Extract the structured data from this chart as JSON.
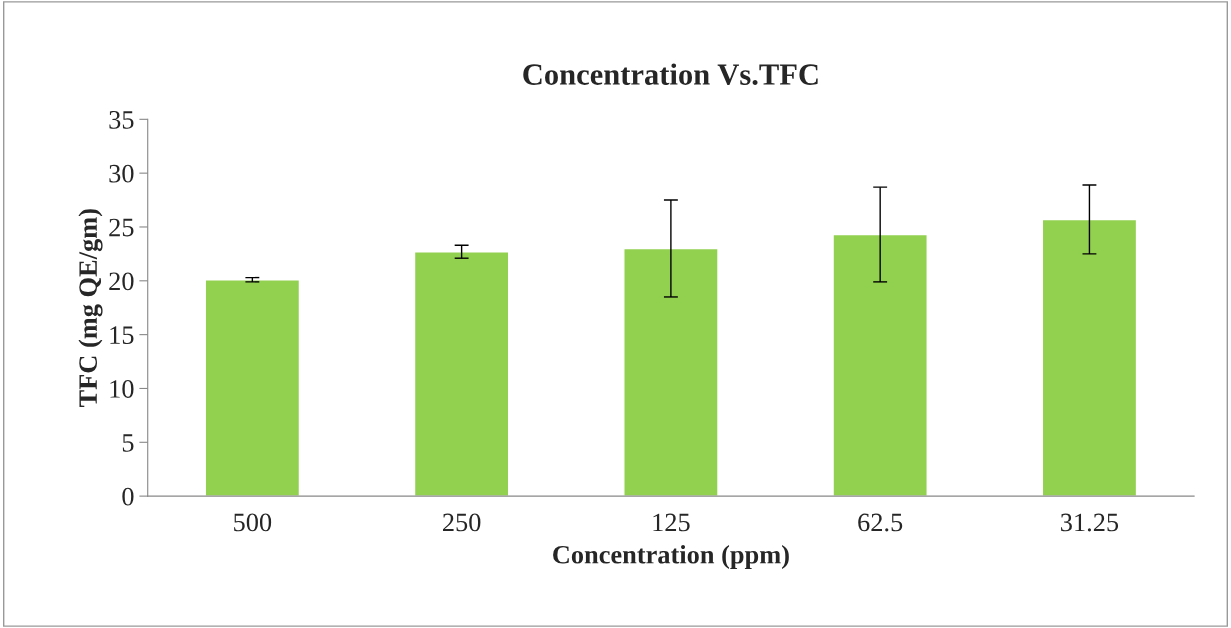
{
  "chart_data": {
    "type": "bar",
    "title": "Concentration Vs.TFC",
    "xlabel": "Concentration (ppm)",
    "ylabel": "TFC (mg QE/gm)",
    "categories": [
      "500",
      "250",
      "125",
      "62.5",
      "31.25"
    ],
    "values": [
      20.1,
      22.7,
      23.0,
      24.3,
      25.7
    ],
    "errors": [
      0.2,
      0.6,
      4.5,
      4.4,
      3.2
    ],
    "color": "#92d050",
    "ylim": [
      0,
      35
    ],
    "yticks": [
      0,
      5,
      10,
      15,
      20,
      25,
      30,
      35
    ],
    "grid": false,
    "legend": false
  }
}
